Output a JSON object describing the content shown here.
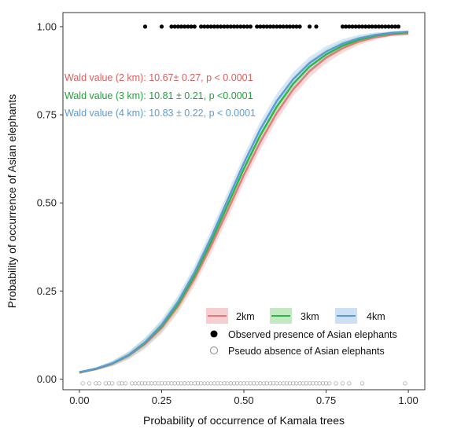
{
  "chart_data": {
    "type": "line",
    "title": "",
    "xlabel": "Probability of occurrence of Kamala trees",
    "ylabel": "Probability of occurrence of Asian elephants",
    "xlim": [
      -0.05,
      1.05
    ],
    "ylim": [
      -0.03,
      1.04
    ],
    "x_ticks": [
      0.0,
      0.25,
      0.5,
      0.75,
      1.0
    ],
    "x_tick_labels": [
      "0.00",
      "0.25",
      "0.50",
      "0.75",
      "1.00"
    ],
    "y_ticks": [
      0.0,
      0.25,
      0.5,
      0.75,
      1.0
    ],
    "y_tick_labels": [
      "0.00",
      "0.25",
      "0.50",
      "0.75",
      "1.00"
    ],
    "grid": false,
    "legend_position": "bottom-right",
    "series": [
      {
        "name": "2km",
        "color": "#e5787a",
        "band_color": "#f4b9ba",
        "x": [
          0.0,
          0.05,
          0.1,
          0.15,
          0.2,
          0.25,
          0.3,
          0.35,
          0.4,
          0.45,
          0.5,
          0.55,
          0.6,
          0.65,
          0.7,
          0.75,
          0.8,
          0.85,
          0.9,
          0.95,
          1.0
        ],
        "y": [
          0.018,
          0.028,
          0.043,
          0.066,
          0.1,
          0.145,
          0.207,
          0.285,
          0.377,
          0.477,
          0.579,
          0.673,
          0.755,
          0.822,
          0.874,
          0.912,
          0.939,
          0.958,
          0.97,
          0.977,
          0.98
        ]
      },
      {
        "name": "3km",
        "color": "#2bb744",
        "band_color": "#a8e0a8",
        "x": [
          0.0,
          0.05,
          0.1,
          0.15,
          0.2,
          0.25,
          0.3,
          0.35,
          0.4,
          0.45,
          0.5,
          0.55,
          0.6,
          0.65,
          0.7,
          0.75,
          0.8,
          0.85,
          0.9,
          0.95,
          1.0
        ],
        "y": [
          0.019,
          0.029,
          0.044,
          0.068,
          0.103,
          0.15,
          0.213,
          0.294,
          0.389,
          0.492,
          0.597,
          0.692,
          0.773,
          0.838,
          0.887,
          0.921,
          0.946,
          0.963,
          0.974,
          0.981,
          0.984
        ]
      },
      {
        "name": "4km",
        "color": "#5b9bd5",
        "band_color": "#b8d3ee",
        "x": [
          0.0,
          0.05,
          0.1,
          0.15,
          0.2,
          0.25,
          0.3,
          0.35,
          0.4,
          0.45,
          0.5,
          0.55,
          0.6,
          0.65,
          0.7,
          0.75,
          0.8,
          0.85,
          0.9,
          0.95,
          1.0
        ],
        "y": [
          0.02,
          0.03,
          0.045,
          0.069,
          0.105,
          0.154,
          0.22,
          0.303,
          0.401,
          0.507,
          0.613,
          0.709,
          0.789,
          0.851,
          0.897,
          0.929,
          0.952,
          0.967,
          0.977,
          0.983,
          0.986
        ]
      }
    ],
    "presence_points": {
      "name": "Observed presence of Asian elephants",
      "y": 1.0,
      "x": [
        0.2,
        0.25,
        0.28,
        0.29,
        0.3,
        0.31,
        0.32,
        0.33,
        0.34,
        0.35,
        0.37,
        0.38,
        0.39,
        0.4,
        0.41,
        0.42,
        0.43,
        0.44,
        0.45,
        0.46,
        0.47,
        0.48,
        0.49,
        0.5,
        0.51,
        0.52,
        0.54,
        0.55,
        0.56,
        0.57,
        0.58,
        0.59,
        0.6,
        0.61,
        0.62,
        0.63,
        0.64,
        0.65,
        0.66,
        0.67,
        0.7,
        0.72,
        0.8,
        0.81,
        0.82,
        0.83,
        0.84,
        0.85,
        0.86,
        0.87,
        0.88,
        0.89,
        0.9,
        0.91,
        0.92,
        0.93,
        0.94,
        0.95,
        0.96,
        0.97
      ]
    },
    "absence_points": {
      "name": "Pseudo absence of Asian elephants",
      "y": -0.012,
      "x": [
        0.01,
        0.03,
        0.05,
        0.06,
        0.08,
        0.09,
        0.1,
        0.12,
        0.13,
        0.14,
        0.16,
        0.17,
        0.18,
        0.19,
        0.2,
        0.21,
        0.22,
        0.23,
        0.24,
        0.25,
        0.26,
        0.27,
        0.28,
        0.29,
        0.3,
        0.31,
        0.32,
        0.33,
        0.34,
        0.35,
        0.36,
        0.37,
        0.38,
        0.39,
        0.4,
        0.41,
        0.42,
        0.43,
        0.44,
        0.45,
        0.46,
        0.47,
        0.48,
        0.49,
        0.5,
        0.51,
        0.52,
        0.53,
        0.54,
        0.55,
        0.56,
        0.57,
        0.58,
        0.59,
        0.6,
        0.61,
        0.62,
        0.63,
        0.64,
        0.65,
        0.66,
        0.67,
        0.68,
        0.69,
        0.7,
        0.71,
        0.72,
        0.73,
        0.74,
        0.75,
        0.76,
        0.78,
        0.8,
        0.82,
        0.86,
        0.99
      ]
    },
    "annotations": [
      {
        "text": "Wald value (2 km): 10.67± 0.27, p < 0.0001",
        "color": "#d9605f"
      },
      {
        "text": "Wald value (3 km): 10.81 ± 0.21, p <0.0001",
        "color": "#22a03a"
      },
      {
        "text": "Wald value (4 km): 10.83 ± 0.22, p < 0.0001",
        "color": "#5b9bd5"
      }
    ]
  }
}
